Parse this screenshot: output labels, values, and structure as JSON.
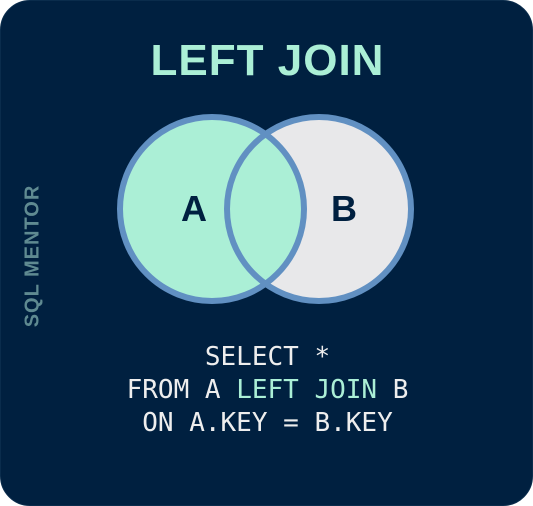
{
  "title": "LEFT JOIN",
  "side_label": "SQL MENTOR",
  "venn": {
    "left_set": "A",
    "right_set": "B",
    "left_fill": "#abefd6",
    "right_fill": "#e8e8ea",
    "outline": "#6190c2"
  },
  "query": {
    "line1": "SELECT *",
    "line2_prefix": "FROM A ",
    "line2_keyword": "LEFT JOIN",
    "line2_suffix": " B",
    "line3": "ON A.KEY = B.KEY"
  },
  "colors": {
    "background": "#002040",
    "accent": "#abefd6",
    "text": "#eeeeee",
    "muted": "#5f8a91"
  }
}
